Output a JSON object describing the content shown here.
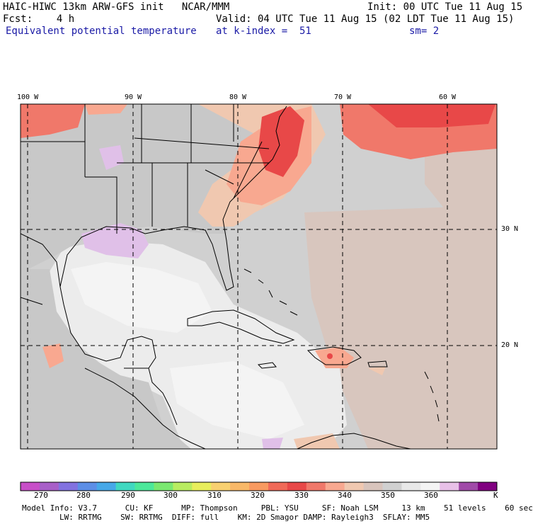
{
  "header": {
    "line1_left": "HAIC-HIWC 13km ARW-GFS init   NCAR/MMM",
    "line1_right": "Init: 00 UTC Tue 11 Aug 15",
    "line2_left": "Fcst:    4 h",
    "line2_right": "Valid: 04 UTC Tue 11 Aug 15 (02 LDT Tue 11 Aug 15)",
    "line3_left": "Equivalent potential temperature",
    "line3_mid": "at k-index =  51",
    "line3_right": "sm= 2"
  },
  "axes": {
    "lon_labels": [
      "100 W",
      "90 W",
      "80 W",
      "70 W",
      "60 W"
    ],
    "lat_labels": [
      "30 N",
      "20 N"
    ]
  },
  "colorbar": {
    "unit": "K",
    "tick_labels": [
      "270",
      "280",
      "290",
      "300",
      "310",
      "320",
      "330",
      "340",
      "350",
      "360"
    ],
    "colors": [
      "#c84fc8",
      "#a85fc8",
      "#8272e0",
      "#5c8ee6",
      "#46a8e8",
      "#40d8c0",
      "#4ce89a",
      "#7ae870",
      "#b8ec60",
      "#e8ee5c",
      "#f8d070",
      "#f8b868",
      "#f89a60",
      "#f06a58",
      "#e84848",
      "#f0786a",
      "#f8a890",
      "#f0c8b0",
      "#d8c4bc",
      "#d0d0d0",
      "#e8e8e8",
      "#f4f4f4",
      "#e8c0e8",
      "#a04aa8",
      "#800080"
    ]
  },
  "footer": {
    "line1": "Model Info: V3.7      CU: KF      MP: Thompson     PBL: YSU     SF: Noah LSM     13 km    51 levels    60 sec",
    "line2": "        LW: RRTMG    SW: RRTMG  DIFF: full    KM: 2D Smagor DAMP: Rayleigh3  SFLAY: MM5"
  }
}
